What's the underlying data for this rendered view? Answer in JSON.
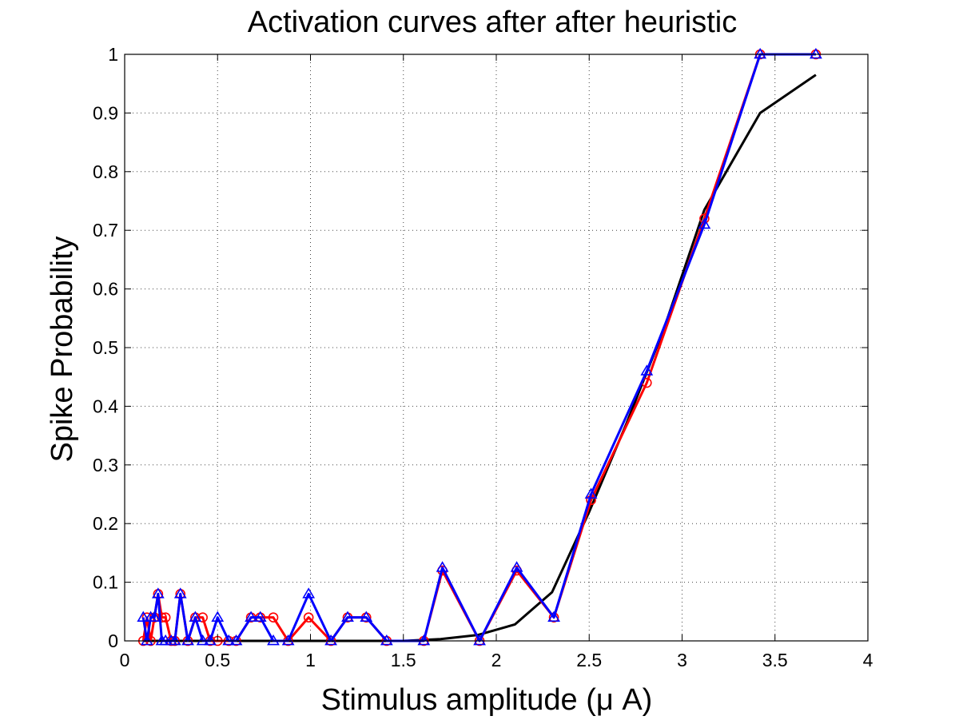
{
  "chart_data": {
    "type": "line",
    "title": "Activation curves after after heuristic",
    "xlabel": "Stimulus amplitude (μ A)",
    "ylabel": "Spike Probability",
    "xlim": [
      0,
      4
    ],
    "ylim": [
      0,
      1
    ],
    "xticks": [
      0,
      0.5,
      1,
      1.5,
      2,
      2.5,
      3,
      3.5,
      4
    ],
    "xtick_labels": [
      "0",
      "0.5",
      "1",
      "1.5",
      "2",
      "2.5",
      "3",
      "3.5",
      "4"
    ],
    "yticks": [
      0,
      0.1,
      0.2,
      0.3,
      0.4,
      0.5,
      0.6,
      0.7,
      0.8,
      0.9,
      1
    ],
    "ytick_labels": [
      "0",
      "0.1",
      "0.2",
      "0.3",
      "0.4",
      "0.5",
      "0.6",
      "0.7",
      "0.8",
      "0.9",
      "1"
    ],
    "grid": true,
    "legend": "none",
    "series": [
      {
        "color": "#ff0000",
        "marker": "circle",
        "x": [
          0.1,
          0.12,
          0.14,
          0.16,
          0.18,
          0.2,
          0.22,
          0.25,
          0.27,
          0.3,
          0.34,
          0.38,
          0.42,
          0.46,
          0.5,
          0.56,
          0.6,
          0.68,
          0.73,
          0.8,
          0.88,
          0.99,
          1.11,
          1.2,
          1.3,
          1.41,
          1.61,
          1.71,
          1.91,
          2.11,
          2.31,
          2.51,
          2.81,
          3.12,
          3.42,
          3.72
        ],
        "y": [
          0,
          0.04,
          0,
          0.04,
          0.08,
          0.04,
          0.04,
          0,
          0,
          0.08,
          0,
          0.04,
          0.04,
          0,
          0,
          0,
          0,
          0.04,
          0.04,
          0.04,
          0,
          0.04,
          0,
          0.04,
          0.04,
          0,
          0,
          0.12,
          0,
          0.12,
          0.04,
          0.24,
          0.44,
          0.72,
          1,
          1
        ]
      },
      {
        "color": "#0000ff",
        "marker": "triangle",
        "x": [
          0.1,
          0.12,
          0.14,
          0.16,
          0.18,
          0.2,
          0.22,
          0.25,
          0.27,
          0.3,
          0.34,
          0.38,
          0.42,
          0.46,
          0.5,
          0.56,
          0.6,
          0.68,
          0.73,
          0.8,
          0.88,
          0.99,
          1.11,
          1.2,
          1.3,
          1.41,
          1.61,
          1.71,
          1.91,
          2.11,
          2.31,
          2.51,
          2.81,
          3.12,
          3.42,
          3.72
        ],
        "y": [
          0.04,
          0,
          0.04,
          0.04,
          0.08,
          0,
          0,
          0,
          0,
          0.08,
          0,
          0.04,
          0,
          0,
          0.04,
          0,
          0,
          0.04,
          0.04,
          0,
          0,
          0.08,
          0,
          0.04,
          0.04,
          0,
          0,
          0.125,
          0,
          0.125,
          0.04,
          0.25,
          0.46,
          0.71,
          1,
          1
        ]
      },
      {
        "color": "#000000",
        "marker": "none",
        "x": [
          0.1,
          0.3,
          0.5,
          0.7,
          0.9,
          1.1,
          1.3,
          1.5,
          1.7,
          1.9,
          2.1,
          2.3,
          2.5,
          2.7,
          2.9,
          3.12,
          3.42,
          3.72
        ],
        "y": [
          0,
          0,
          0,
          0,
          0,
          0,
          0,
          0,
          0.003,
          0.01,
          0.028,
          0.083,
          0.22,
          0.37,
          0.53,
          0.735,
          0.9,
          0.965
        ]
      }
    ]
  }
}
